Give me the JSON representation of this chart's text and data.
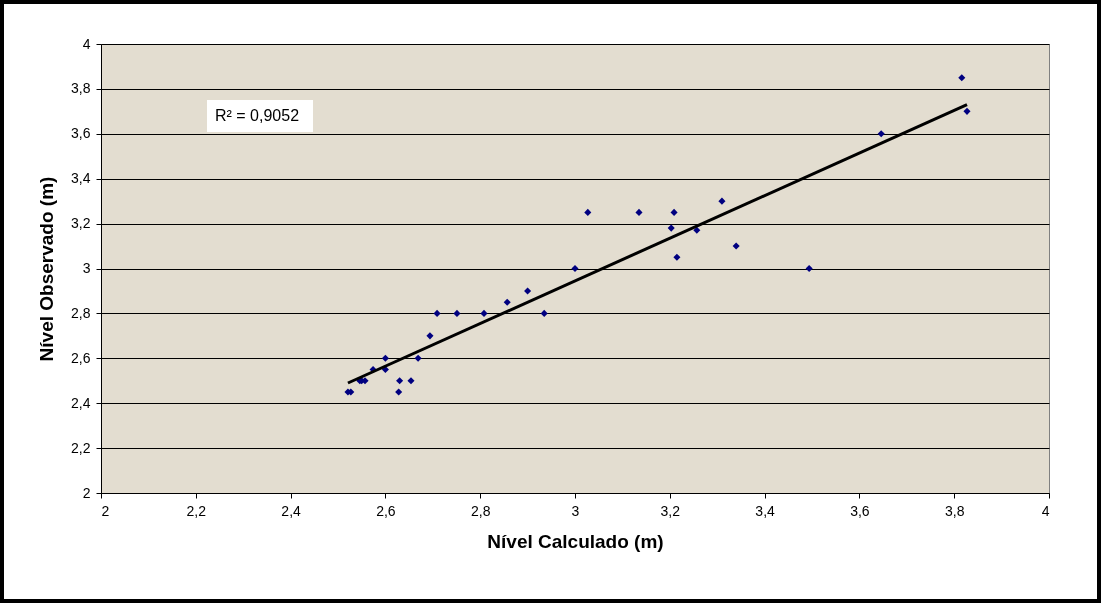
{
  "chart_data": {
    "type": "scatter",
    "xlabel": "Nível Calculado (m)",
    "ylabel": "Nível Observado (m)",
    "annotations": [
      "R² = 0,9052"
    ],
    "xlim": [
      2,
      4
    ],
    "ylim": [
      2,
      4
    ],
    "xticks": [
      2,
      {
        "value": 2.2,
        "label": "2,2"
      },
      {
        "value": 2.4,
        "label": "2,4"
      },
      {
        "value": 2.6,
        "label": "2,6"
      },
      {
        "value": 2.8,
        "label": "2,8"
      },
      3,
      {
        "value": 3.2,
        "label": "3,2"
      },
      {
        "value": 3.4,
        "label": "3,4"
      },
      {
        "value": 3.6,
        "label": "3,6"
      },
      {
        "value": 3.8,
        "label": "3,8"
      },
      4
    ],
    "yticks": [
      2,
      {
        "value": 2.2,
        "label": "2,2"
      },
      {
        "value": 2.4,
        "label": "2,4"
      },
      {
        "value": 2.6,
        "label": "2,6"
      },
      {
        "value": 2.8,
        "label": "2,8"
      },
      3,
      {
        "value": 3.2,
        "label": "3,2"
      },
      {
        "value": 3.4,
        "label": "3,4"
      },
      {
        "value": 3.6,
        "label": "3,6"
      },
      {
        "value": 3.8,
        "label": "3,8"
      },
      4
    ],
    "grid": "y",
    "legend": false,
    "marker": "diamond",
    "series": [
      {
        "type": "scatter",
        "color": "#000080",
        "x": [
          2.521,
          2.527,
          2.546,
          2.55,
          2.557,
          2.574,
          2.6,
          2.6,
          2.628,
          2.63,
          2.654,
          2.669,
          2.694,
          2.709,
          2.751,
          2.808,
          2.857,
          2.9,
          2.935,
          3.0,
          3.027,
          3.135,
          3.209,
          3.203,
          3.257,
          3.31,
          3.215,
          3.34,
          3.494,
          3.646,
          3.816,
          3.827
        ],
        "values": [
          2.45,
          2.45,
          2.5,
          2.5,
          2.5,
          2.55,
          2.6,
          2.55,
          2.45,
          2.5,
          2.5,
          2.6,
          2.7,
          2.8,
          2.8,
          2.8,
          2.85,
          2.9,
          2.8,
          3.0,
          3.25,
          3.25,
          3.25,
          3.18,
          3.17,
          3.3,
          3.05,
          3.1,
          3.0,
          3.6,
          3.85,
          3.7
        ]
      },
      {
        "type": "line",
        "color": "#000000",
        "line_style": "solid",
        "marker": "none",
        "x": [
          2.521,
          3.827
        ],
        "values": [
          2.49,
          3.73
        ]
      }
    ]
  }
}
